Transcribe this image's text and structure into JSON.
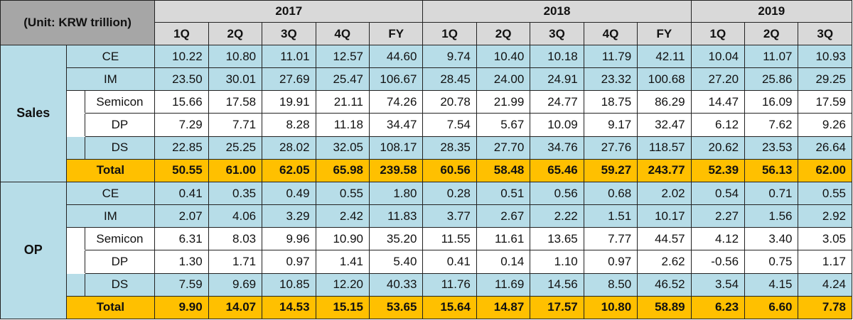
{
  "unit_label": "(Unit: KRW trillion)",
  "years": [
    {
      "label": "2017",
      "span": 5
    },
    {
      "label": "2018",
      "span": 5
    },
    {
      "label": "2019",
      "span": 3
    }
  ],
  "columns": [
    "1Q",
    "2Q",
    "3Q",
    "4Q",
    "FY",
    "1Q",
    "2Q",
    "3Q",
    "4Q",
    "FY",
    "1Q",
    "2Q",
    "3Q"
  ],
  "sections": [
    {
      "label": "Sales",
      "rows": [
        {
          "label": "CE",
          "sub": false,
          "style": "blue",
          "values": [
            "10.22",
            "10.80",
            "11.01",
            "12.57",
            "44.60",
            "9.74",
            "10.40",
            "10.18",
            "11.79",
            "42.11",
            "10.04",
            "11.07",
            "10.93"
          ]
        },
        {
          "label": "IM",
          "sub": false,
          "style": "blue",
          "values": [
            "23.50",
            "30.01",
            "27.69",
            "25.47",
            "106.67",
            "28.45",
            "24.00",
            "24.91",
            "23.32",
            "100.68",
            "27.20",
            "25.86",
            "29.25"
          ]
        },
        {
          "label": "Semicon",
          "sub": true,
          "style": "white",
          "values": [
            "15.66",
            "17.58",
            "19.91",
            "21.11",
            "74.26",
            "20.78",
            "21.99",
            "24.77",
            "18.75",
            "86.29",
            "14.47",
            "16.09",
            "17.59"
          ]
        },
        {
          "label": "DP",
          "sub": true,
          "style": "white",
          "values": [
            "7.29",
            "7.71",
            "8.28",
            "11.18",
            "34.47",
            "7.54",
            "5.67",
            "10.09",
            "9.17",
            "32.47",
            "6.12",
            "7.62",
            "9.26"
          ]
        },
        {
          "label": "DS",
          "sub": true,
          "style": "blue",
          "values": [
            "22.85",
            "25.25",
            "28.02",
            "32.05",
            "108.17",
            "28.35",
            "27.70",
            "34.76",
            "27.76",
            "118.57",
            "20.62",
            "23.53",
            "26.64"
          ]
        }
      ],
      "total": {
        "label": "Total",
        "values": [
          "50.55",
          "61.00",
          "62.05",
          "65.98",
          "239.58",
          "60.56",
          "58.48",
          "65.46",
          "59.27",
          "243.77",
          "52.39",
          "56.13",
          "62.00"
        ]
      }
    },
    {
      "label": "OP",
      "rows": [
        {
          "label": "CE",
          "sub": false,
          "style": "blue",
          "values": [
            "0.41",
            "0.35",
            "0.49",
            "0.55",
            "1.80",
            "0.28",
            "0.51",
            "0.56",
            "0.68",
            "2.02",
            "0.54",
            "0.71",
            "0.55"
          ]
        },
        {
          "label": "IM",
          "sub": false,
          "style": "blue",
          "values": [
            "2.07",
            "4.06",
            "3.29",
            "2.42",
            "11.83",
            "3.77",
            "2.67",
            "2.22",
            "1.51",
            "10.17",
            "2.27",
            "1.56",
            "2.92"
          ]
        },
        {
          "label": "Semicon",
          "sub": true,
          "style": "white",
          "values": [
            "6.31",
            "8.03",
            "9.96",
            "10.90",
            "35.20",
            "11.55",
            "11.61",
            "13.65",
            "7.77",
            "44.57",
            "4.12",
            "3.40",
            "3.05"
          ]
        },
        {
          "label": "DP",
          "sub": true,
          "style": "white",
          "values": [
            "1.30",
            "1.71",
            "0.97",
            "1.41",
            "5.40",
            "0.41",
            "0.14",
            "1.10",
            "0.97",
            "2.62",
            "-0.56",
            "0.75",
            "1.17"
          ]
        },
        {
          "label": "DS",
          "sub": true,
          "style": "blue",
          "values": [
            "7.59",
            "9.69",
            "10.85",
            "12.20",
            "40.33",
            "11.76",
            "11.69",
            "14.56",
            "8.50",
            "46.52",
            "3.54",
            "4.15",
            "4.24"
          ]
        }
      ],
      "total": {
        "label": "Total",
        "values": [
          "9.90",
          "14.07",
          "14.53",
          "15.15",
          "53.65",
          "15.64",
          "14.87",
          "17.57",
          "10.80",
          "58.89",
          "6.23",
          "6.60",
          "7.78"
        ]
      }
    }
  ],
  "colors": {
    "header_gray": "#d9d9d9",
    "unit_gray": "#a6a6a6",
    "group_yellow": "#ffc000",
    "row_blue": "#b7dde8",
    "row_white": "#ffffff"
  }
}
